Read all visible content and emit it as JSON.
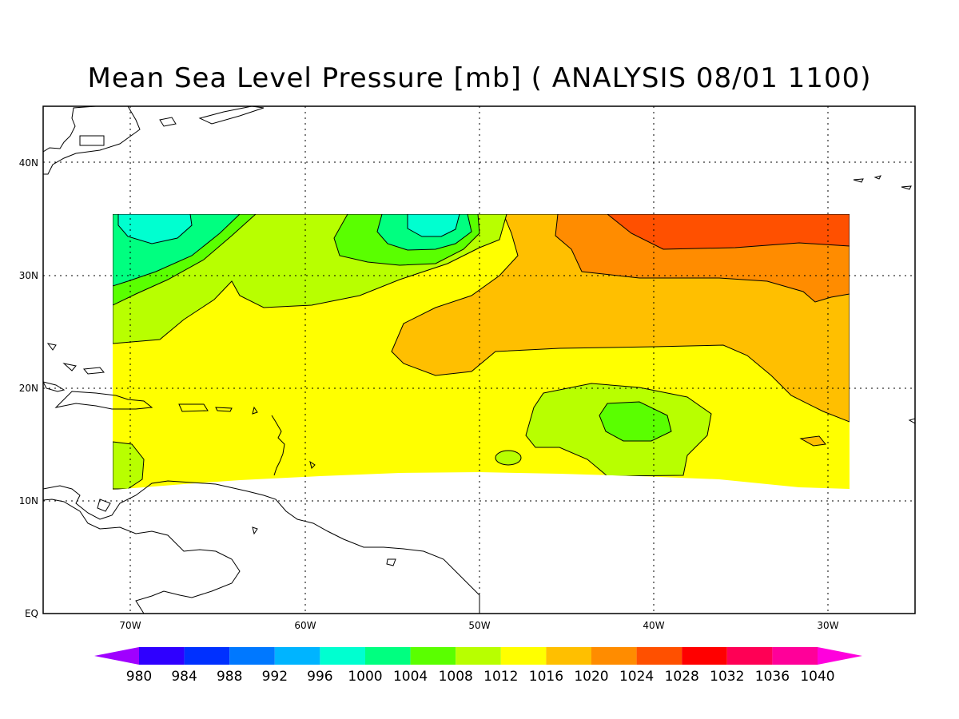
{
  "title": "Mean Sea Level Pressure [mb] ( ANALYSIS 08/01 1100)",
  "map": {
    "lon_range": [
      -75,
      -25
    ],
    "lat_range": [
      0,
      45
    ],
    "gridlines": "dotted",
    "lat_ticks": [
      {
        "value": 40,
        "label": "40N"
      },
      {
        "value": 30,
        "label": "30N"
      },
      {
        "value": 20,
        "label": "20N"
      },
      {
        "value": 10,
        "label": "10N"
      },
      {
        "value": 0,
        "label": "EQ"
      }
    ],
    "lon_ticks": [
      {
        "value": -70,
        "label": "70W"
      },
      {
        "value": -60,
        "label": "60W"
      },
      {
        "value": -50,
        "label": "50W"
      },
      {
        "value": -40,
        "label": "40W"
      },
      {
        "value": -30,
        "label": "30W"
      }
    ]
  },
  "colorbar": {
    "levels": [
      "980",
      "984",
      "988",
      "992",
      "996",
      "1000",
      "1004",
      "1008",
      "1012",
      "1016",
      "1020",
      "1024",
      "1028",
      "1032",
      "1036",
      "1040"
    ],
    "colors": [
      "#a000ff",
      "#2f00ff",
      "#0030ff",
      "#0078ff",
      "#00b4ff",
      "#00ffd0",
      "#00ff80",
      "#5aff00",
      "#b8ff00",
      "#ffff00",
      "#ffbf00",
      "#ff8c00",
      "#ff5000",
      "#ff0000",
      "#ff0055",
      "#ff0099",
      "#ff00dd"
    ]
  }
}
